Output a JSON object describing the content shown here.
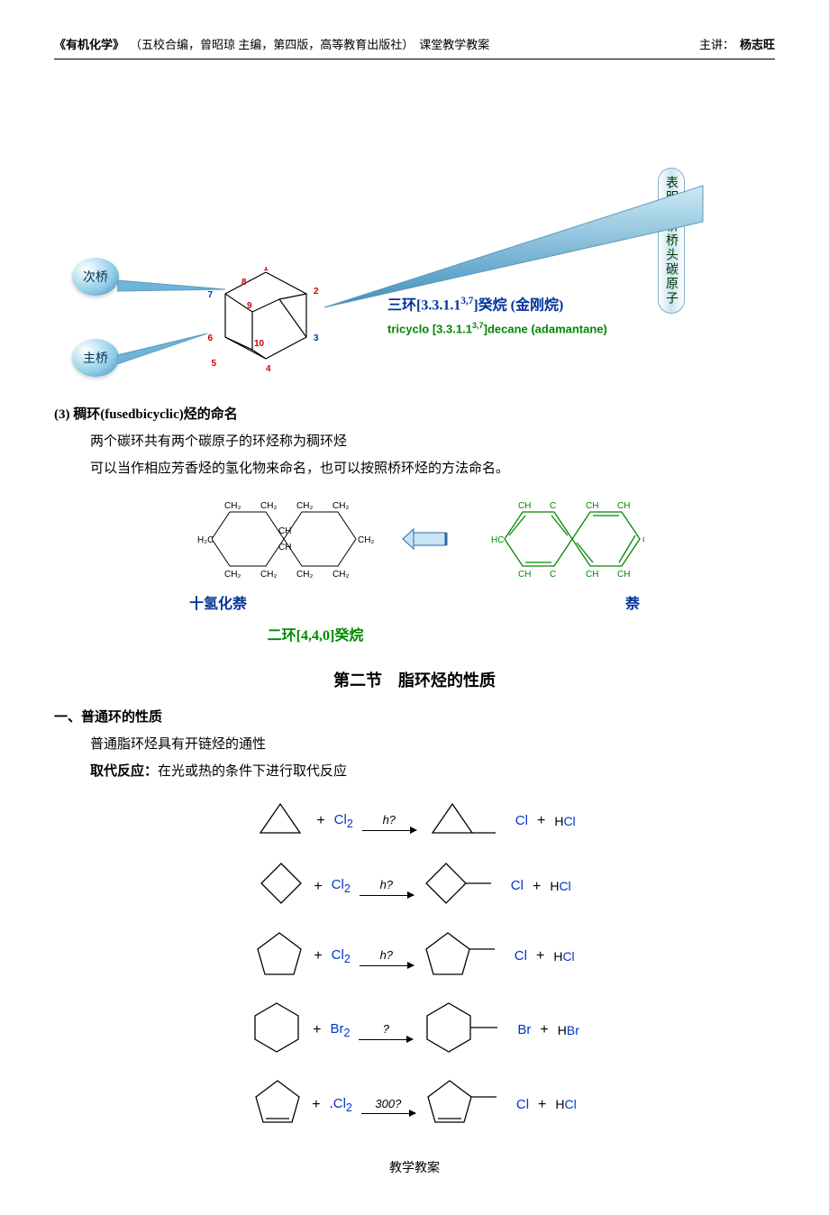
{
  "header": {
    "book": "《有机化学》",
    "info": "（五校合编，曾昭琼 主编，第四版，高等教育出版社）",
    "subject": "课堂教学教案",
    "lecturer_label": "主讲：",
    "lecturer": "杨志旺"
  },
  "callout_vertical": "表明次桥桥头碳原子",
  "bubbles": {
    "secondary": "次桥",
    "main": "主桥"
  },
  "adamantane": {
    "title_prefix": "三环[3.3.1.1",
    "title_sup": "3,7",
    "title_suffix": "]癸烷 (金刚烷)",
    "sub_prefix": "tricyclo [3.3.1.1",
    "sub_sup": "3,7",
    "sub_suffix": "]decane (adamantane)",
    "atom_labels": [
      "1",
      "2",
      "3",
      "4",
      "5",
      "6",
      "7",
      "8",
      "9",
      "10"
    ]
  },
  "fused": {
    "heading": "(3)  稠环(fusedbicyclic)烃的命名",
    "line1": "两个碳环共有两个碳原子的环烃称为稠环烃",
    "line2": "可以当作相应芳香烃的氢化物来命名，也可以按照桥环烃的方法命名。",
    "left_label": "十氢化萘",
    "right_label": "萘",
    "alt_name": "二环[4,4,0]癸烷"
  },
  "section2": {
    "title": "第二节　脂环烃的性质",
    "sub1": "一、普通环的性质",
    "line1": "普通脂环烃具有开链烃的通性",
    "sub2": "取代反应：",
    "sub2_rest": "在光或热的条件下进行取代反应"
  },
  "reactions": [
    {
      "ring": "cyclopropane",
      "reagent": "Cl",
      "cond": "h?",
      "prodX": "Cl",
      "byH": "H",
      "byX": "Cl"
    },
    {
      "ring": "cyclobutane",
      "reagent": "Cl",
      "cond": "h?",
      "prodX": "Cl",
      "byH": "H",
      "byX": "Cl"
    },
    {
      "ring": "cyclopentane",
      "reagent": "Cl",
      "cond": "h?",
      "prodX": "Cl",
      "byH": "H",
      "byX": "Cl"
    },
    {
      "ring": "cyclohexane",
      "reagent": "Br",
      "cond": "?",
      "prodX": "Br",
      "byH": "H",
      "byX": "Br"
    },
    {
      "ring": "cyclopentene",
      "reagent": "Cl",
      "cond": "300?",
      "prodX": "Cl",
      "byH": "H",
      "byX": "Cl",
      "dot": true
    }
  ],
  "colors": {
    "blue": "#003399",
    "green": "#008800",
    "red": "#cc0000",
    "blueNum": "#0033cc"
  },
  "footer": "教学教案"
}
